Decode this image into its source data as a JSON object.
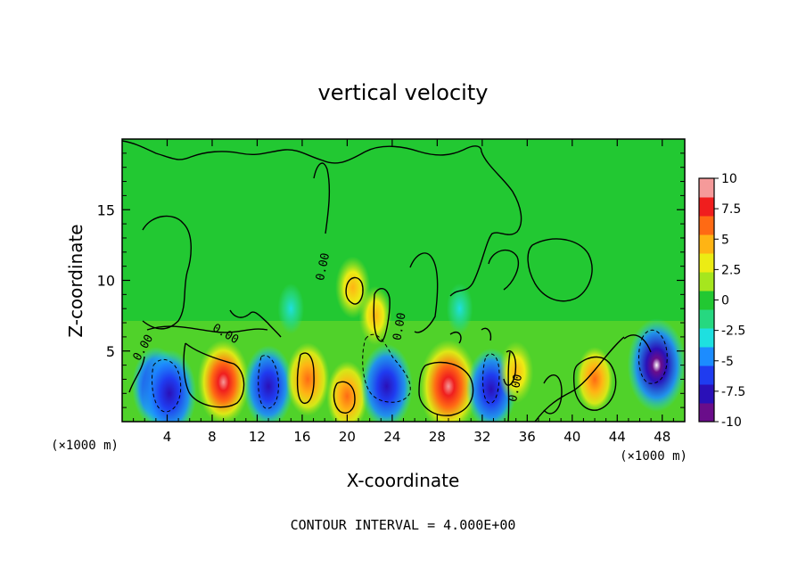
{
  "chart_data": {
    "type": "heatmap",
    "title": "vertical velocity",
    "xlabel": "X-coordinate",
    "ylabel": "Z-coordinate",
    "x_unit": "(×1000 m)",
    "xlim": [
      0,
      50
    ],
    "ylim": [
      0,
      20
    ],
    "x_ticks": [
      4,
      8,
      12,
      16,
      20,
      24,
      28,
      32,
      36,
      40,
      44,
      48
    ],
    "y_ticks": [
      5,
      10,
      15
    ],
    "colorbar": {
      "range": [
        -10,
        10
      ],
      "tick_labels": [
        "10",
        "7.5",
        "5",
        "2.5",
        "0",
        "-2.5",
        "-5",
        "-7.5",
        "-10"
      ],
      "colors": [
        "#6a0d8a",
        "#2a10b8",
        "#1f3cf0",
        "#1c8cff",
        "#1ee0e0",
        "#26d880",
        "#22c832",
        "#a6e61e",
        "#ecec14",
        "#ffb414",
        "#ff6a14",
        "#f01e1e",
        "#f59a9a"
      ]
    },
    "contour_label": "0.00",
    "footer": "CONTOUR INTERVAL = 4.000E+00",
    "field": [
      {
        "x": 3.0,
        "z": 2.5,
        "w": -7.0
      },
      {
        "x": 4.2,
        "z": 2.0,
        "w": -8.5
      },
      {
        "x": 9.0,
        "z": 2.8,
        "w": 8.0
      },
      {
        "x": 13.0,
        "z": 2.5,
        "w": -7.5
      },
      {
        "x": 16.5,
        "z": 3.0,
        "w": 6.0
      },
      {
        "x": 20.0,
        "z": 1.8,
        "w": 5.5
      },
      {
        "x": 23.5,
        "z": 2.5,
        "w": -8.0
      },
      {
        "x": 29.0,
        "z": 2.5,
        "w": 9.5
      },
      {
        "x": 32.8,
        "z": 2.3,
        "w": -7.5
      },
      {
        "x": 35.0,
        "z": 3.5,
        "w": 4.0
      },
      {
        "x": 42.0,
        "z": 3.0,
        "w": 4.5
      },
      {
        "x": 47.5,
        "z": 4.0,
        "w": -9.5
      },
      {
        "x": 20.5,
        "z": 9.5,
        "w": 4.0
      },
      {
        "x": 22.5,
        "z": 7.5,
        "w": 3.5
      },
      {
        "x": 15.0,
        "z": 8.0,
        "w": -2.0
      },
      {
        "x": 30.0,
        "z": 8.0,
        "w": -2.0
      }
    ]
  }
}
